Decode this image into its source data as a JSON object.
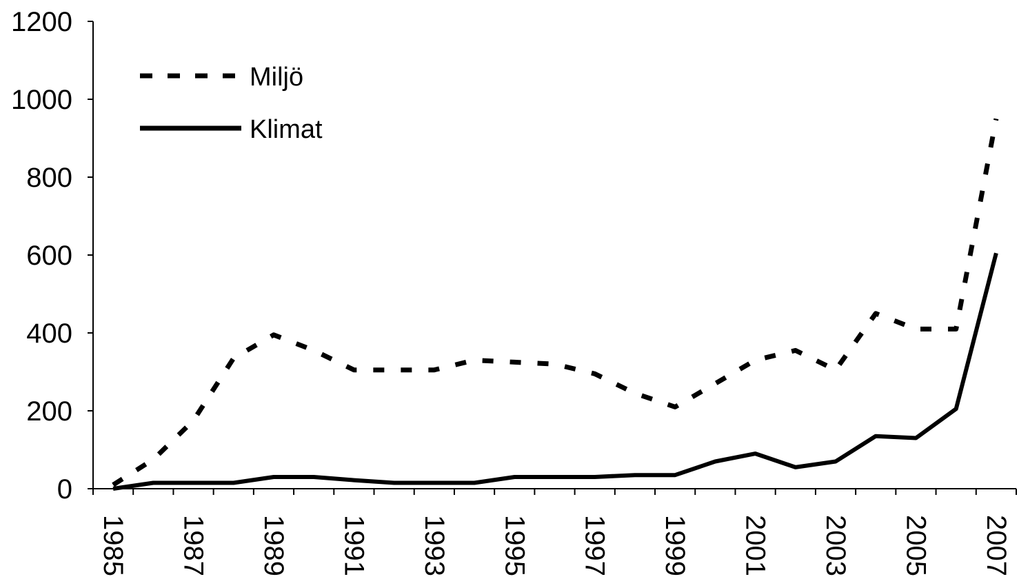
{
  "chart_data": {
    "type": "line",
    "title": "",
    "xlabel": "",
    "ylabel": "",
    "x": [
      1985,
      1986,
      1987,
      1988,
      1989,
      1990,
      1991,
      1992,
      1993,
      1994,
      1995,
      1996,
      1997,
      1998,
      1999,
      2000,
      2001,
      2002,
      2003,
      2004,
      2005,
      2006,
      2007
    ],
    "xticks": [
      "1985",
      "1987",
      "1989",
      "1991",
      "1993",
      "1995",
      "1997",
      "1999",
      "2001",
      "2003",
      "2005",
      "2007"
    ],
    "yticks": [
      "0",
      "200",
      "400",
      "600",
      "800",
      "1000",
      "1200"
    ],
    "ylim": [
      0,
      1200
    ],
    "grid": false,
    "legend_position": "top-left",
    "series": [
      {
        "name": "Miljö",
        "style": "dashed",
        "color": "#000000",
        "values": [
          10,
          75,
          175,
          335,
          395,
          355,
          305,
          305,
          305,
          330,
          325,
          320,
          295,
          245,
          210,
          270,
          330,
          355,
          305,
          450,
          410,
          410,
          950
        ]
      },
      {
        "name": "Klimat",
        "style": "solid",
        "color": "#000000",
        "values": [
          0,
          15,
          15,
          15,
          30,
          30,
          22,
          15,
          15,
          15,
          30,
          30,
          30,
          35,
          35,
          70,
          90,
          55,
          70,
          135,
          130,
          205,
          605
        ]
      }
    ]
  }
}
